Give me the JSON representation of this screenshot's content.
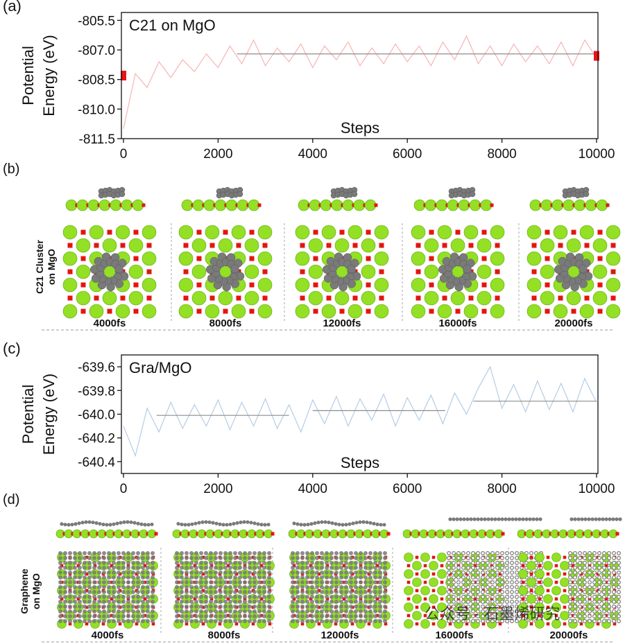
{
  "chart_data": [
    {
      "type": "line",
      "label": "(a)",
      "annotation": "C21 on MgO",
      "xlabel": "Steps",
      "ylabel": [
        "Potential",
        "Energy (eV)"
      ],
      "x": [
        0,
        250,
        500,
        750,
        1000,
        1250,
        1500,
        1750,
        2000,
        2250,
        2500,
        2750,
        3000,
        3250,
        3500,
        3750,
        4000,
        4250,
        4500,
        4750,
        5000,
        5250,
        5500,
        5750,
        6000,
        6250,
        6500,
        6750,
        7000,
        7250,
        7500,
        7750,
        8000,
        8250,
        8500,
        8750,
        9000,
        9250,
        9500,
        9750,
        10000
      ],
      "series": [
        {
          "color": "#f7b4b4",
          "values": [
            -811.0,
            -808.2,
            -808.9,
            -807.6,
            -808.4,
            -807.5,
            -808.1,
            -807.2,
            -807.9,
            -806.8,
            -807.7,
            -806.5,
            -807.8,
            -806.9,
            -807.6,
            -806.7,
            -807.9,
            -806.8,
            -807.5,
            -806.6,
            -807.8,
            -806.9,
            -807.7,
            -806.7,
            -807.6,
            -806.8,
            -807.8,
            -806.6,
            -807.5,
            -806.3,
            -807.7,
            -806.8,
            -807.8,
            -806.7,
            -807.6,
            -806.8,
            -807.7,
            -806.6,
            -807.8,
            -806.5,
            -807.4
          ]
        }
      ],
      "mean_lines": [
        {
          "color": "#8c8c8c",
          "x": [
            2400,
            10000
          ],
          "values": [
            -807.2,
            -807.2
          ]
        }
      ],
      "markers": {
        "color": "#e8141a",
        "x": [
          0,
          10000
        ],
        "values": [
          -808.3,
          -807.3
        ]
      },
      "xlim": [
        0,
        10000
      ],
      "ylim": [
        -811.5,
        -805.1
      ],
      "xticks": [
        0,
        2000,
        4000,
        6000,
        8000,
        10000
      ],
      "yticks": [
        -805.5,
        {
          "value": -807,
          "label": "-807.0"
        },
        -808.5,
        {
          "value": -810,
          "label": "-810.0"
        },
        -811.5
      ]
    },
    {
      "type": "line",
      "label": "(c)",
      "annotation": "Gra/MgO",
      "xlabel": "Steps",
      "ylabel": [
        "Potential",
        "Energy (eV)"
      ],
      "x": [
        0,
        250,
        500,
        750,
        1000,
        1250,
        1500,
        1750,
        2000,
        2250,
        2500,
        2750,
        3000,
        3250,
        3500,
        3750,
        4000,
        4250,
        4500,
        4750,
        5000,
        5250,
        5500,
        5750,
        6000,
        6250,
        6500,
        6750,
        7000,
        7250,
        7500,
        7750,
        8000,
        8250,
        8500,
        8750,
        9000,
        9250,
        9500,
        9750,
        10000
      ],
      "series": [
        {
          "color": "#b4cce6",
          "values": [
            -640.1,
            -640.35,
            -639.95,
            -640.15,
            -639.9,
            -640.12,
            -639.92,
            -640.1,
            -639.88,
            -640.13,
            -639.9,
            -640.1,
            -639.87,
            -640.12,
            -639.92,
            -640.15,
            -639.88,
            -640.08,
            -639.85,
            -640.1,
            -639.87,
            -640.05,
            -639.83,
            -640.1,
            -639.86,
            -640.05,
            -639.84,
            -640.08,
            -639.82,
            -640.0,
            -639.78,
            -639.6,
            -639.95,
            -639.75,
            -639.98,
            -639.72,
            -639.96,
            -639.74,
            -639.98,
            -639.7,
            -639.9
          ]
        }
      ],
      "mean_lines": [
        {
          "color": "#8c8c8c",
          "x": [
            700,
            3500
          ],
          "values": [
            -640.01,
            -640.01
          ]
        },
        {
          "color": "#8c8c8c",
          "x": [
            4000,
            6800
          ],
          "values": [
            -639.97,
            -639.97
          ]
        },
        {
          "color": "#8c8c8c",
          "x": [
            7400,
            10000
          ],
          "values": [
            -639.89,
            -639.89
          ]
        }
      ],
      "xlim": [
        0,
        10000
      ],
      "ylim": [
        -640.5,
        -639.5
      ],
      "xticks": [
        0,
        2000,
        4000,
        6000,
        8000,
        10000
      ],
      "yticks": [
        -639.6,
        -639.8,
        {
          "value": -640,
          "label": "-640.0"
        },
        -640.2,
        -640.4
      ]
    }
  ],
  "snapshots": [
    {
      "label": "(b)",
      "side_label": [
        "C21 Cluster",
        "on MgO"
      ],
      "times": [
        "4000fs",
        "8000fs",
        "12000fs",
        "16000fs",
        "20000fs"
      ]
    },
    {
      "label": "(d)",
      "side_label": [
        "Graphene",
        "on MgO"
      ],
      "times": [
        "4000fs",
        "8000fs",
        "12000fs",
        "16000fs",
        "20000fs"
      ]
    }
  ],
  "watermark": "公众号 · 石墨烯研究"
}
